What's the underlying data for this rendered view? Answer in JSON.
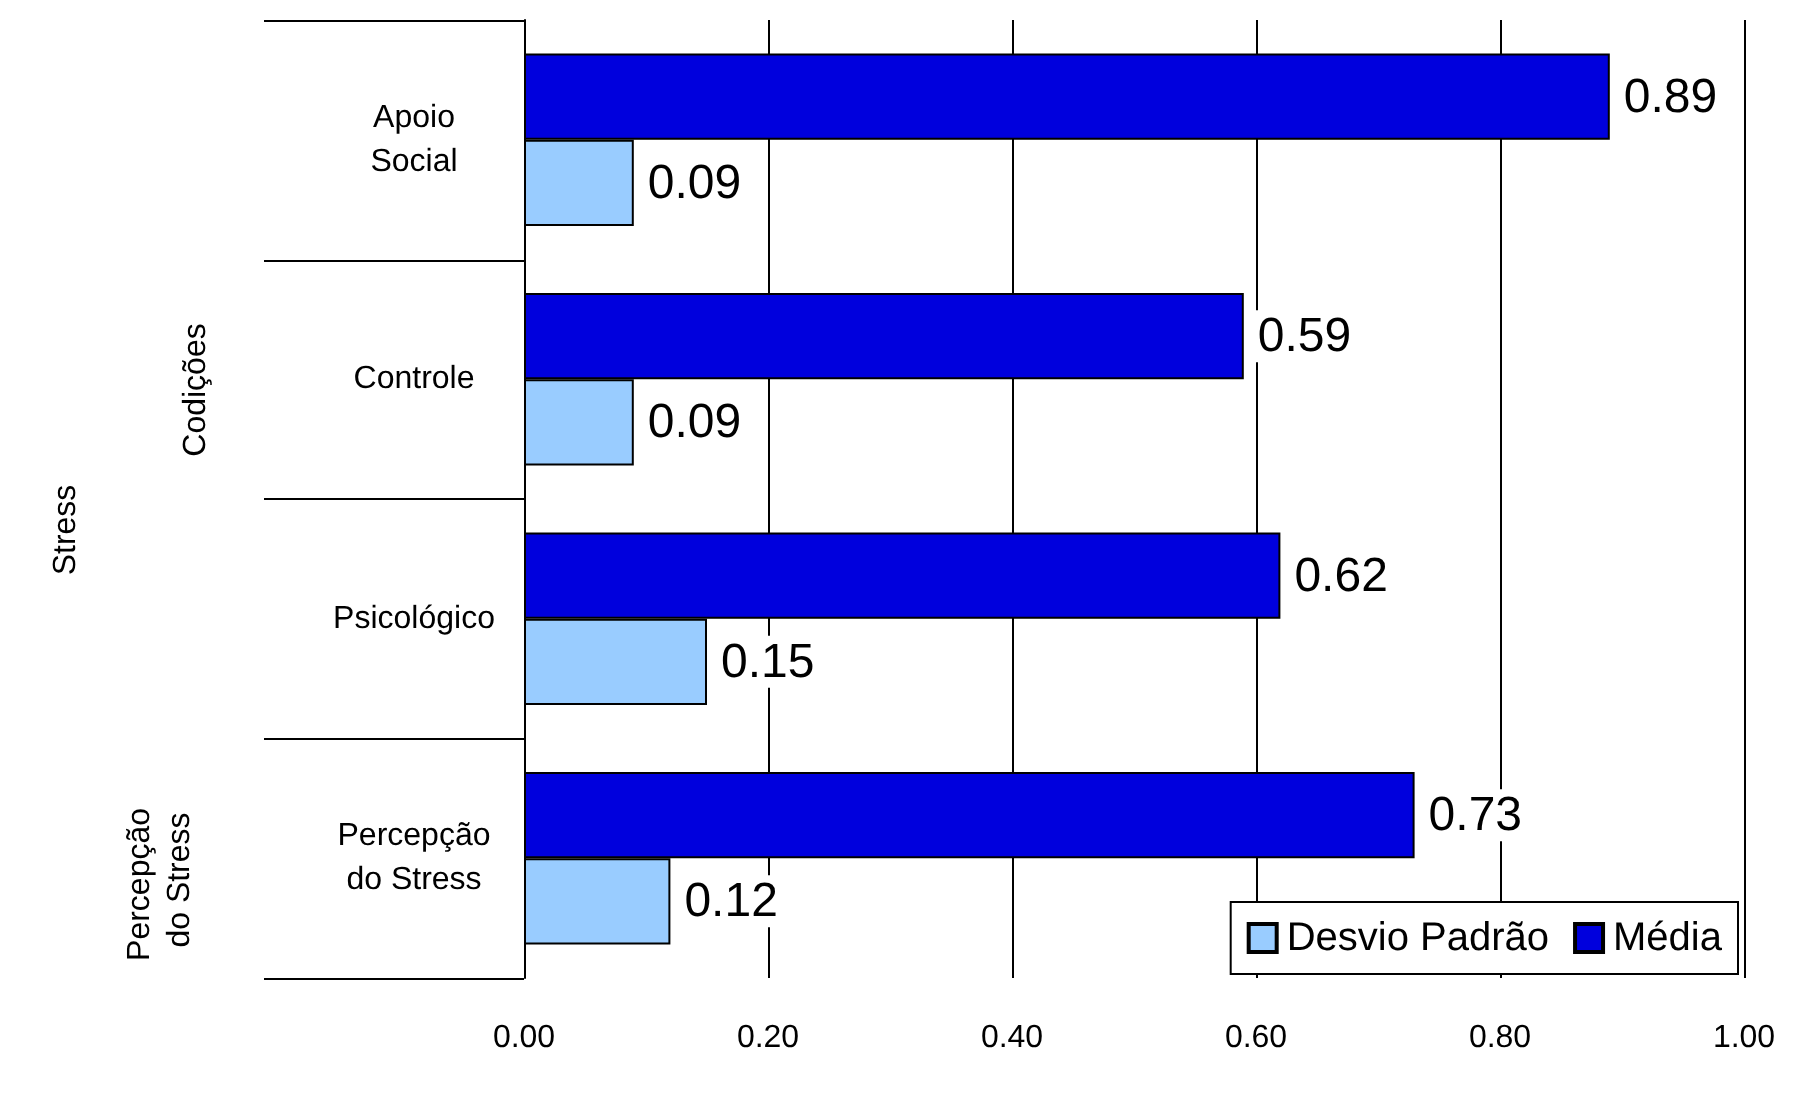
{
  "chart_data": {
    "type": "bar",
    "orientation": "horizontal",
    "categories": [
      "Apoio Social",
      "Controle",
      "Psicológico",
      "Percepção do Stress"
    ],
    "series": [
      {
        "name": "Desvio Padrão",
        "color": "#99ccff",
        "values": [
          0.09,
          0.09,
          0.15,
          0.12
        ]
      },
      {
        "name": "Média",
        "color": "#0000dd",
        "values": [
          0.89,
          0.59,
          0.62,
          0.73
        ]
      }
    ],
    "xlim": [
      0,
      1
    ],
    "xticks": [
      {
        "value": 0,
        "label": "0.00"
      },
      {
        "value": 0.2,
        "label": "0.20"
      },
      {
        "value": 0.4,
        "label": "0.40"
      },
      {
        "value": 0.6,
        "label": "0.60"
      },
      {
        "value": 0.8,
        "label": "0.80"
      },
      {
        "value": 1,
        "label": "1.00"
      }
    ],
    "grid": "x",
    "legend": "bottom right",
    "data_labels": true,
    "annotations": [
      "Stress",
      "Codições",
      "Percepção do Stress"
    ]
  }
}
